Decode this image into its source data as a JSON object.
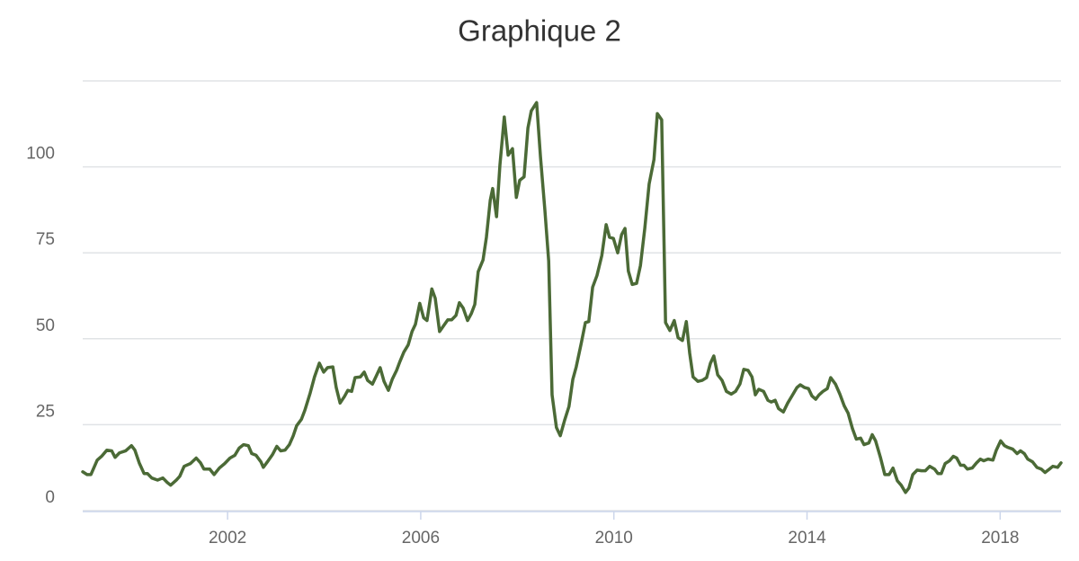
{
  "chart_data": {
    "type": "line",
    "title": "Graphique 2",
    "color": "#4b6a36",
    "x": [
      1999.0,
      1999.09,
      1999.17,
      1999.3,
      1999.39,
      1999.5,
      1999.6,
      1999.67,
      1999.76,
      1999.89,
      2000.01,
      2000.08,
      2000.17,
      2000.27,
      2000.34,
      2000.43,
      2000.55,
      2000.66,
      2000.75,
      2000.82,
      2000.94,
      2001.01,
      2001.1,
      2001.23,
      2001.35,
      2001.44,
      2001.51,
      2001.63,
      2001.72,
      2001.83,
      2001.94,
      2002.05,
      2002.15,
      2002.24,
      2002.33,
      2002.43,
      2002.5,
      2002.59,
      2002.69,
      2002.74,
      2002.84,
      2002.93,
      2003.02,
      2003.1,
      2003.19,
      2003.28,
      2003.36,
      2003.43,
      2003.53,
      2003.6,
      2003.71,
      2003.8,
      2003.9,
      2003.99,
      2004.07,
      2004.18,
      2004.25,
      2004.33,
      2004.42,
      2004.49,
      2004.57,
      2004.64,
      2004.75,
      2004.83,
      2004.9,
      2005.0,
      2005.09,
      2005.16,
      2005.24,
      2005.33,
      2005.41,
      2005.5,
      2005.57,
      2005.65,
      2005.74,
      2005.82,
      2005.89,
      2005.98,
      2006.06,
      2006.13,
      2006.23,
      2006.3,
      2006.39,
      2006.47,
      2006.56,
      2006.64,
      2006.73,
      2006.8,
      2006.88,
      2006.97,
      2007.05,
      2007.12,
      2007.19,
      2007.29,
      2007.36,
      2007.44,
      2007.49,
      2007.57,
      2007.64,
      2007.73,
      2007.81,
      2007.9,
      2007.98,
      2008.05,
      2008.14,
      2008.22,
      2008.29,
      2008.4,
      2008.48,
      2008.57,
      2008.65,
      2008.72,
      2008.81,
      2008.89,
      2008.98,
      2009.07,
      2009.15,
      2009.22,
      2009.32,
      2009.41,
      2009.48,
      2009.56,
      2009.65,
      2009.75,
      2009.84,
      2009.91,
      2009.99,
      2010.08,
      2010.16,
      2010.23,
      2010.3,
      2010.38,
      2010.47,
      2010.55,
      2010.64,
      2010.73,
      2010.83,
      2010.9,
      2010.99,
      2011.07,
      2011.16,
      2011.25,
      2011.33,
      2011.42,
      2011.5,
      2011.57,
      2011.64,
      2011.74,
      2011.83,
      2011.92,
      2012.0,
      2012.07,
      2012.15,
      2012.24,
      2012.33,
      2012.43,
      2012.52,
      2012.61,
      2012.69,
      2012.78,
      2012.86,
      2012.93,
      2013.0,
      2013.1,
      2013.19,
      2013.26,
      2013.34,
      2013.41,
      2013.51,
      2013.6,
      2013.69,
      2013.79,
      2013.86,
      2013.95,
      2014.03,
      2014.1,
      2014.18,
      2014.25,
      2014.33,
      2014.42,
      2014.49,
      2014.59,
      2014.68,
      2014.77,
      2014.85,
      2014.94,
      2015.02,
      2015.11,
      2015.18,
      2015.28,
      2015.35,
      2015.42,
      2015.52,
      2015.61,
      2015.7,
      2015.78,
      2015.87,
      2015.95,
      2016.04,
      2016.11,
      2016.19,
      2016.28,
      2016.37,
      2016.45,
      2016.54,
      2016.64,
      2016.71,
      2016.78,
      2016.86,
      2016.95,
      2017.03,
      2017.1,
      2017.18,
      2017.25,
      2017.32,
      2017.42,
      2017.51,
      2017.59,
      2017.66,
      2017.75,
      2017.85,
      2017.92,
      2018.01,
      2018.09,
      2018.16,
      2018.26,
      2018.35,
      2018.42,
      2018.5,
      2018.57,
      2018.67,
      2018.76,
      2018.85,
      2018.93,
      2019.02,
      2019.09,
      2019.19,
      2019.26
    ],
    "values": [
      11.3,
      10.5,
      10.5,
      14.7,
      15.8,
      17.6,
      17.4,
      15.5,
      16.8,
      17.4,
      18.9,
      17.6,
      13.9,
      10.8,
      10.8,
      9.5,
      8.9,
      9.5,
      8.2,
      7.4,
      8.9,
      10.0,
      12.9,
      13.7,
      15.3,
      13.9,
      12.1,
      12.1,
      10.5,
      12.4,
      13.7,
      15.3,
      16.1,
      18.2,
      19.2,
      18.9,
      16.6,
      16.1,
      14.2,
      12.6,
      14.5,
      16.3,
      18.7,
      17.4,
      17.6,
      19.2,
      21.8,
      24.7,
      26.6,
      29.2,
      34.2,
      38.9,
      42.9,
      40.3,
      41.6,
      41.8,
      35.8,
      31.3,
      33.2,
      35.0,
      34.7,
      38.7,
      38.9,
      40.3,
      37.9,
      36.8,
      39.5,
      41.6,
      37.6,
      35.0,
      38.2,
      40.8,
      43.4,
      46.1,
      48.2,
      52.1,
      54.2,
      60.3,
      56.1,
      55.3,
      64.5,
      61.8,
      52.1,
      53.7,
      55.5,
      55.5,
      56.8,
      60.5,
      58.9,
      55.3,
      57.4,
      60.0,
      69.5,
      72.9,
      79.5,
      90.3,
      93.7,
      85.5,
      100.5,
      114.5,
      103.4,
      105.3,
      91.1,
      96.1,
      97.1,
      111.3,
      116.3,
      118.7,
      102.9,
      87.6,
      72.6,
      33.7,
      24.2,
      21.8,
      26.3,
      30.3,
      38.2,
      41.8,
      48.4,
      54.7,
      55.0,
      65.0,
      68.4,
      74.2,
      83.2,
      79.5,
      79.2,
      75.0,
      80.3,
      82.1,
      69.7,
      65.8,
      66.1,
      71.3,
      82.1,
      95.0,
      102.1,
      115.5,
      113.7,
      54.7,
      52.4,
      55.3,
      50.3,
      49.5,
      55.0,
      45.8,
      38.9,
      37.6,
      37.9,
      38.7,
      42.9,
      45.0,
      39.5,
      37.9,
      34.7,
      33.9,
      34.7,
      36.8,
      41.1,
      40.8,
      38.9,
      33.7,
      35.3,
      34.7,
      32.1,
      31.6,
      32.1,
      29.7,
      28.7,
      31.3,
      33.4,
      35.8,
      36.6,
      35.8,
      35.5,
      33.4,
      32.4,
      33.7,
      34.7,
      35.5,
      38.7,
      36.8,
      33.9,
      30.5,
      28.4,
      23.9,
      20.8,
      21.1,
      19.2,
      19.7,
      22.1,
      20.3,
      15.5,
      10.5,
      10.5,
      12.4,
      8.7,
      7.4,
      5.3,
      6.6,
      10.5,
      11.8,
      11.6,
      11.6,
      12.9,
      12.1,
      10.8,
      10.8,
      13.7,
      14.5,
      15.8,
      15.3,
      13.2,
      13.2,
      12.1,
      12.4,
      13.9,
      15.0,
      14.5,
      15.0,
      14.7,
      17.6,
      20.3,
      18.9,
      18.4,
      17.9,
      16.6,
      17.4,
      16.6,
      15.0,
      14.2,
      12.6,
      12.1,
      11.1,
      12.1,
      12.9,
      12.6,
      13.9
    ],
    "xlim": [
      1999.0,
      2019.26
    ],
    "xticks": [
      2002,
      2006,
      2010,
      2014,
      2018
    ],
    "ylim": [
      0,
      125
    ],
    "yticks": [
      0,
      25,
      50,
      75,
      100
    ],
    "grid": true
  }
}
